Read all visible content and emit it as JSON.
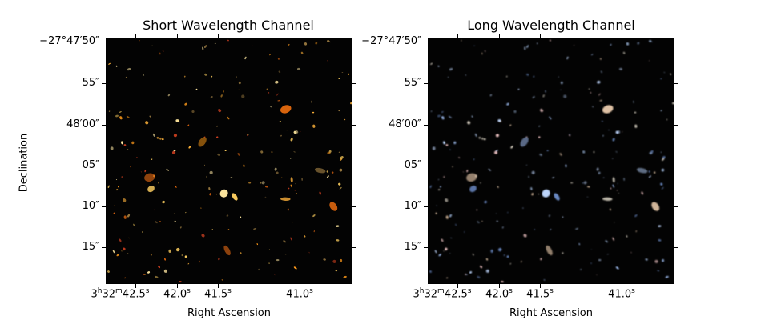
{
  "panels": [
    {
      "title": "Short Wavelength Channel",
      "palette": "short"
    },
    {
      "title": "Long Wavelength Channel",
      "palette": "long"
    }
  ],
  "axes": {
    "ylabel": "Declination",
    "xlabel": "Right Ascension",
    "dec_ticks": [
      "−27°47′50″",
      "55″",
      "48′00″",
      "05″",
      "10″",
      "15″"
    ],
    "ra_ticks": [
      {
        "h": "3",
        "hu": "h",
        "m": "32",
        "mu": "m",
        "s": "42.5",
        "su": "s"
      },
      {
        "h": "",
        "hu": "",
        "m": "",
        "mu": "",
        "s": "42.0",
        "su": "s"
      },
      {
        "h": "",
        "hu": "",
        "m": "",
        "mu": "",
        "s": "41.5",
        "su": "s"
      },
      {
        "h": "",
        "hu": "",
        "m": "",
        "mu": "",
        "s": "41.0",
        "su": "s"
      }
    ]
  },
  "colors": {
    "background": "#030303",
    "short_palette": [
      "#ff9a1a",
      "#ffb33a",
      "#ffd060",
      "#e86a10",
      "#ffe8a0",
      "#d04020",
      "#9a7a40"
    ],
    "long_palette": [
      "#a8c8ff",
      "#e8e0d0",
      "#6c8cc8",
      "#f0d0b0",
      "#c0d8ff",
      "#ffd0d0",
      "#8aa0c0"
    ]
  }
}
